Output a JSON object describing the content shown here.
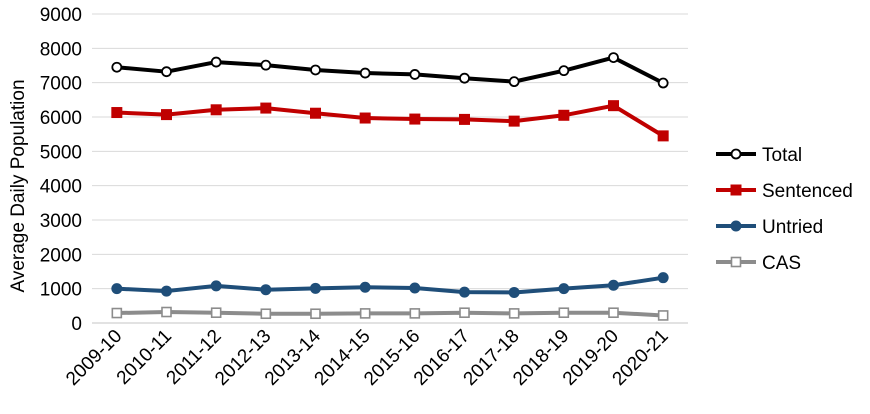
{
  "chart_data": {
    "type": "line",
    "title": "",
    "xlabel": "",
    "ylabel": "Average Daily Population",
    "ylim": [
      0,
      9000
    ],
    "yticks": [
      0,
      1000,
      2000,
      3000,
      4000,
      5000,
      6000,
      7000,
      8000,
      9000
    ],
    "grid": "horizontal",
    "legend_position": "right",
    "categories": [
      "2009-10",
      "2010-11",
      "2011-12",
      "2012-13",
      "2013-14",
      "2014-15",
      "2015-16",
      "2016-17",
      "2017-18",
      "2018-19",
      "2019-20",
      "2020-21"
    ],
    "series": [
      {
        "name": "Total",
        "color": "#000000",
        "marker": "circle-open",
        "values": [
          7450,
          7320,
          7600,
          7510,
          7370,
          7280,
          7240,
          7130,
          7030,
          7350,
          7730,
          6990
        ]
      },
      {
        "name": "Sentenced",
        "color": "#c00000",
        "marker": "square-filled",
        "values": [
          6130,
          6070,
          6210,
          6260,
          6110,
          5970,
          5940,
          5930,
          5880,
          6050,
          6330,
          5450
        ]
      },
      {
        "name": "Untried",
        "color": "#1f4e79",
        "marker": "circle-filled",
        "values": [
          1000,
          930,
          1080,
          970,
          1010,
          1040,
          1020,
          900,
          890,
          1000,
          1100,
          1320
        ]
      },
      {
        "name": "CAS",
        "color": "#8c8c8c",
        "marker": "square-open",
        "values": [
          290,
          320,
          300,
          270,
          270,
          280,
          280,
          300,
          280,
          300,
          300,
          220
        ]
      }
    ]
  }
}
